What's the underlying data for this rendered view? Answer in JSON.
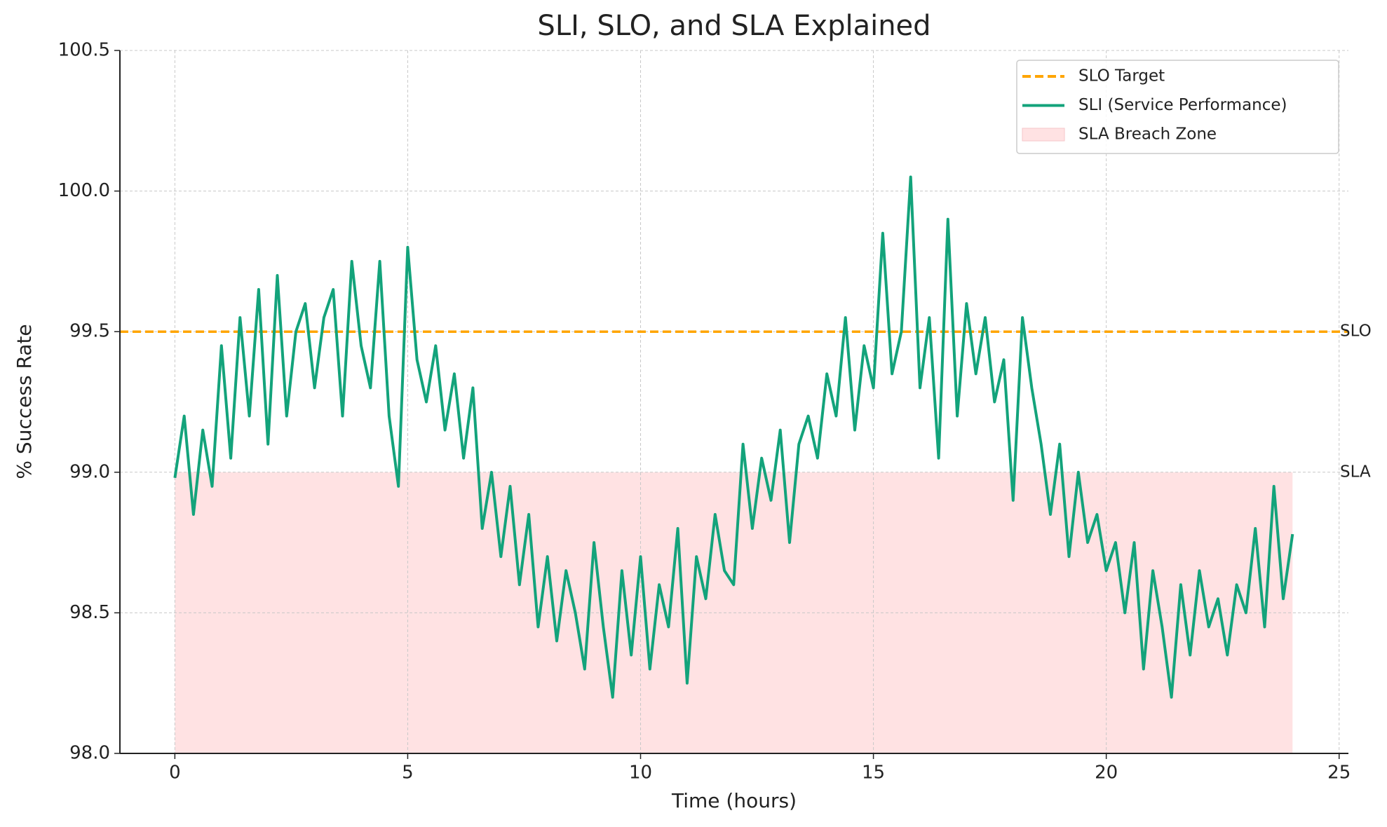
{
  "chart_data": {
    "type": "line",
    "title": "SLI, SLO, and SLA Explained",
    "xlabel": "Time (hours)",
    "ylabel": "% Success Rate",
    "x": [
      0,
      0.2,
      0.4,
      0.6,
      0.8,
      1,
      1.2,
      1.4,
      1.6,
      1.8,
      2,
      2.2,
      2.4,
      2.6,
      2.8,
      3,
      3.2,
      3.4,
      3.6,
      3.8,
      4,
      4.2,
      4.4,
      4.6,
      4.8,
      5,
      5.2,
      5.4,
      5.6,
      5.8,
      6,
      6.2,
      6.4,
      6.6,
      6.8,
      7,
      7.2,
      7.4,
      7.6,
      7.8,
      8,
      8.2,
      8.4,
      8.6,
      8.8,
      9,
      9.2,
      9.4,
      9.6,
      9.8,
      10,
      10.2,
      10.4,
      10.6,
      10.8,
      11,
      11.2,
      11.4,
      11.6,
      11.8,
      12,
      12.2,
      12.4,
      12.6,
      12.8,
      13,
      13.2,
      13.4,
      13.6,
      13.8,
      14,
      14.2,
      14.4,
      14.6,
      14.8,
      15,
      15.2,
      15.4,
      15.6,
      15.8,
      16,
      16.2,
      16.4,
      16.6,
      16.8,
      17,
      17.2,
      17.4,
      17.6,
      17.8,
      18,
      18.2,
      18.4,
      18.6,
      18.8,
      19,
      19.2,
      19.4,
      19.6,
      19.8,
      20,
      20.2,
      20.4,
      20.6,
      20.8,
      21,
      21.2,
      21.4,
      21.6,
      21.8,
      22,
      22.2,
      22.4,
      22.6,
      22.8,
      23,
      23.2,
      23.4,
      23.6,
      23.8,
      24
    ],
    "series": [
      {
        "name": "SLI (Service Performance)",
        "color": "#13a37b",
        "values": [
          98.98,
          99.2,
          98.85,
          99.15,
          98.95,
          99.45,
          99.05,
          99.55,
          99.2,
          99.65,
          99.1,
          99.7,
          99.2,
          99.5,
          99.6,
          99.3,
          99.55,
          99.65,
          99.2,
          99.75,
          99.45,
          99.3,
          99.75,
          99.2,
          98.95,
          99.8,
          99.4,
          99.25,
          99.45,
          99.15,
          99.35,
          99.05,
          99.3,
          98.8,
          99.0,
          98.7,
          98.95,
          98.6,
          98.85,
          98.45,
          98.7,
          98.4,
          98.65,
          98.5,
          98.3,
          98.75,
          98.45,
          98.2,
          98.65,
          98.35,
          98.7,
          98.3,
          98.6,
          98.45,
          98.8,
          98.25,
          98.7,
          98.55,
          98.85,
          98.65,
          98.6,
          99.1,
          98.8,
          99.05,
          98.9,
          99.15,
          98.75,
          99.1,
          99.2,
          99.05,
          99.35,
          99.2,
          99.55,
          99.15,
          99.45,
          99.3,
          99.85,
          99.35,
          99.5,
          100.05,
          99.3,
          99.55,
          99.05,
          99.9,
          99.2,
          99.6,
          99.35,
          99.55,
          99.25,
          99.4,
          98.9,
          99.55,
          99.3,
          99.1,
          98.85,
          99.1,
          98.7,
          99.0,
          98.75,
          98.85,
          98.65,
          98.75,
          98.5,
          98.75,
          98.3,
          98.65,
          98.45,
          98.2,
          98.6,
          98.35,
          98.65,
          98.45,
          98.55,
          98.35,
          98.6,
          98.5,
          98.8,
          98.45,
          98.95,
          98.55,
          98.78
        ]
      }
    ],
    "slo": {
      "name": "SLO Target",
      "label": "SLO",
      "value": 99.5,
      "color": "#ffa500"
    },
    "sla": {
      "name": "SLA Breach Zone",
      "label": "SLA",
      "value": 99.0,
      "x_range": [
        0,
        24
      ],
      "color": "#ffe2e3"
    },
    "xlim": [
      -1.18,
      25.2
    ],
    "xticks": [
      0,
      5,
      10,
      15,
      20,
      25
    ],
    "ylim": [
      98,
      100.5
    ],
    "yticks": [
      {
        "value": 98,
        "label": "98.0"
      },
      98.5,
      {
        "value": 99,
        "label": "99.0"
      },
      99.5,
      {
        "value": 100,
        "label": "100.0"
      },
      100.5
    ],
    "grid": true,
    "legend": "upper right"
  }
}
